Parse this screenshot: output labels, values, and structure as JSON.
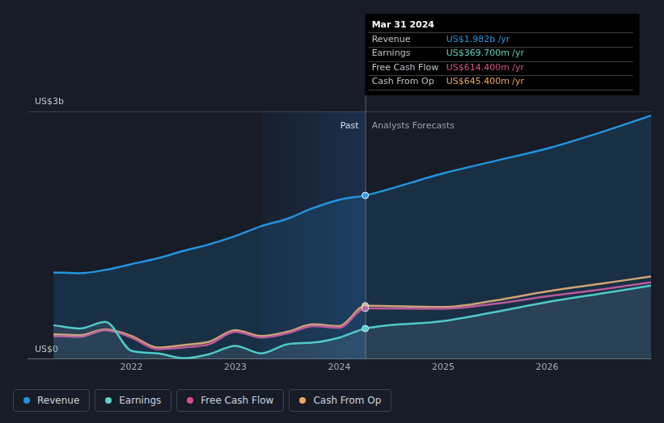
{
  "chart_data": {
    "type": "line",
    "x": [
      2021.25,
      2021.5,
      2021.75,
      2022,
      2022.25,
      2022.5,
      2022.75,
      2023,
      2023.25,
      2023.5,
      2023.75,
      2024,
      2024.25,
      2025,
      2025.5,
      2026,
      2026.5,
      2027
    ],
    "series": [
      {
        "name": "Revenue",
        "color": "#2394df",
        "values": [
          1.05,
          1.04,
          1.08,
          1.15,
          1.22,
          1.31,
          1.39,
          1.49,
          1.61,
          1.7,
          1.83,
          1.93,
          1.982,
          2.25,
          2.4,
          2.55,
          2.74,
          2.95
        ]
      },
      {
        "name": "Earnings",
        "color": "#58d5c4",
        "values": [
          0.41,
          0.37,
          0.45,
          0.1,
          0.07,
          0.01,
          0.06,
          0.16,
          0.07,
          0.18,
          0.2,
          0.26,
          0.3697,
          0.46,
          0.57,
          0.69,
          0.79,
          0.89
        ]
      },
      {
        "name": "Free Cash Flow",
        "color": "#d64f8e",
        "values": [
          0.28,
          0.27,
          0.35,
          0.26,
          0.12,
          0.14,
          0.18,
          0.33,
          0.26,
          0.31,
          0.4,
          0.38,
          0.614,
          0.61,
          0.67,
          0.76,
          0.84,
          0.93
        ]
      },
      {
        "name": "Cash From Op",
        "color": "#f0a860",
        "values": [
          0.3,
          0.29,
          0.36,
          0.28,
          0.14,
          0.17,
          0.21,
          0.35,
          0.28,
          0.33,
          0.42,
          0.4,
          0.645,
          0.63,
          0.71,
          0.82,
          0.91,
          1.0
        ]
      }
    ],
    "xlim": [
      2021,
      2027
    ],
    "xticks": [
      2022,
      2023,
      2024,
      2025,
      2026
    ],
    "ylim": [
      0,
      3
    ],
    "yticks": [
      {
        "value": 0,
        "label": "US$0"
      },
      {
        "value": 3,
        "label": "US$3b"
      }
    ],
    "grid": true,
    "legend": "bottom",
    "highlight_x": [
      2023.25,
      2024.25
    ],
    "divider": {
      "x": 2024.25,
      "left_label": "Past",
      "right_label": "Analysts Forecasts"
    },
    "tooltip": {
      "x": 2024.25,
      "title": "Mar 31 2024",
      "rows": [
        {
          "name": "Revenue",
          "text": "US$1.982b /yr"
        },
        {
          "name": "Earnings",
          "text": "US$369.700m /yr"
        },
        {
          "name": "Free Cash Flow",
          "text": "US$614.400m /yr"
        },
        {
          "name": "Cash From Op",
          "text": "US$645.400m /yr"
        }
      ]
    }
  }
}
